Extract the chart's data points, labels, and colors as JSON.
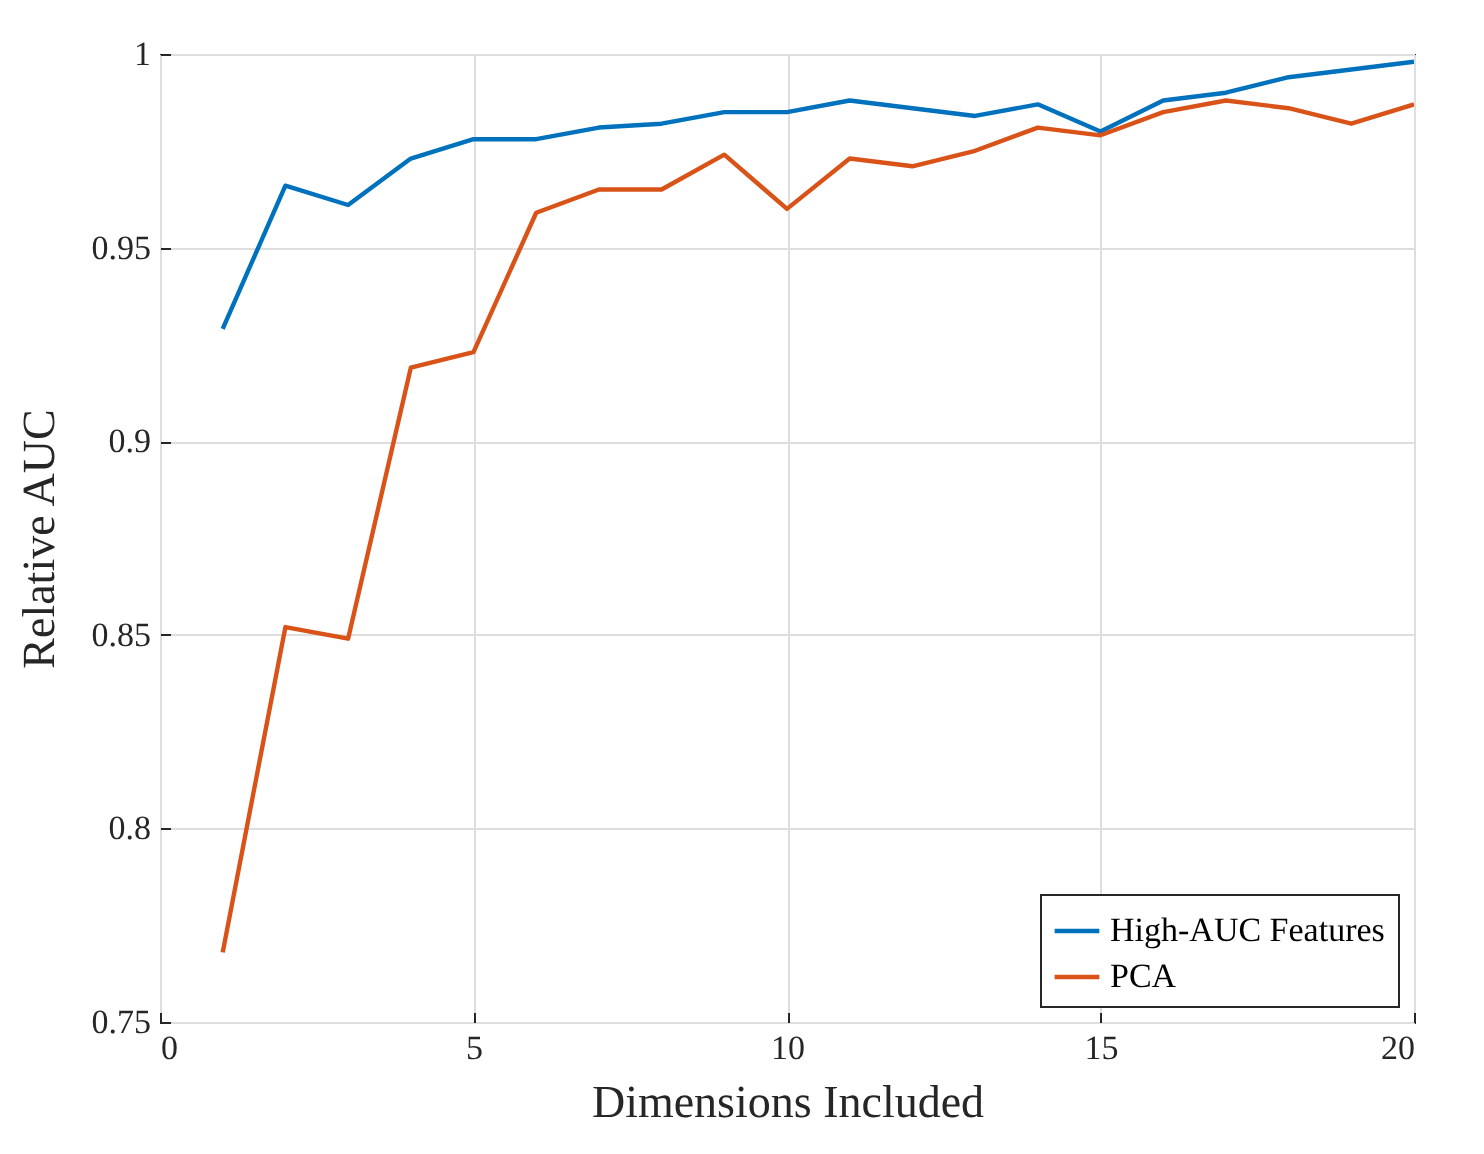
{
  "chart_data": {
    "type": "line",
    "xlabel": "Dimensions Included",
    "ylabel": "Relative AUC",
    "x": [
      1,
      2,
      3,
      4,
      5,
      6,
      7,
      8,
      9,
      10,
      11,
      12,
      13,
      14,
      15,
      16,
      17,
      18,
      19,
      20
    ],
    "series": [
      {
        "name": "High-AUC Features",
        "color": "#0072bd",
        "values": [
          0.929,
          0.966,
          0.961,
          0.973,
          0.978,
          0.978,
          0.981,
          0.982,
          0.985,
          0.985,
          0.988,
          0.986,
          0.984,
          0.987,
          0.98,
          0.988,
          0.99,
          0.994,
          0.996,
          0.998
        ]
      },
      {
        "name": "PCA",
        "color": "#d95319",
        "values": [
          0.768,
          0.852,
          0.849,
          0.919,
          0.923,
          0.959,
          0.965,
          0.965,
          0.974,
          0.96,
          0.973,
          0.971,
          0.975,
          0.981,
          0.979,
          0.985,
          0.988,
          0.986,
          0.982,
          0.987
        ]
      }
    ],
    "xlim": [
      0,
      20
    ],
    "xticks": [
      0,
      5,
      10,
      15,
      20
    ],
    "ylim": [
      0.75,
      1
    ],
    "yticks": [
      0.75,
      0.8,
      0.85,
      0.9,
      0.95,
      1
    ],
    "grid": true,
    "legend": "bottom right",
    "marker": "none",
    "line_style": "solid"
  }
}
